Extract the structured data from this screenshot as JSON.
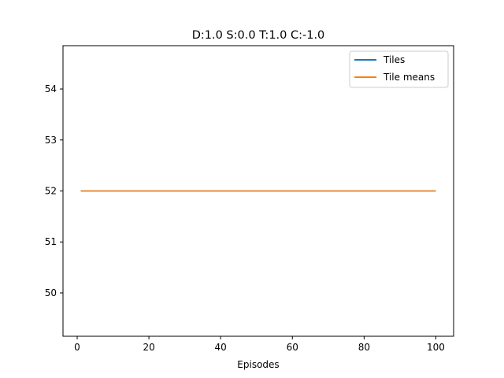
{
  "chart_data": {
    "type": "line",
    "title": "D:1.0 S:0.0 T:1.0 C:-1.0",
    "xlabel": "Episodes",
    "ylabel": "",
    "xlim": [
      -3.95,
      104.95
    ],
    "ylim": [
      49.15,
      54.85
    ],
    "xticks": [
      0,
      20,
      40,
      60,
      80,
      100
    ],
    "yticks": [
      50,
      51,
      52,
      53,
      54
    ],
    "grid": false,
    "legend_position": "upper right",
    "series": [
      {
        "name": "Tiles",
        "color": "#1f77b4",
        "x": [
          1,
          100
        ],
        "y": [
          52,
          52
        ]
      },
      {
        "name": "Tile means",
        "color": "#ff7f0e",
        "x": [
          1,
          100
        ],
        "y": [
          52,
          52
        ]
      }
    ]
  }
}
